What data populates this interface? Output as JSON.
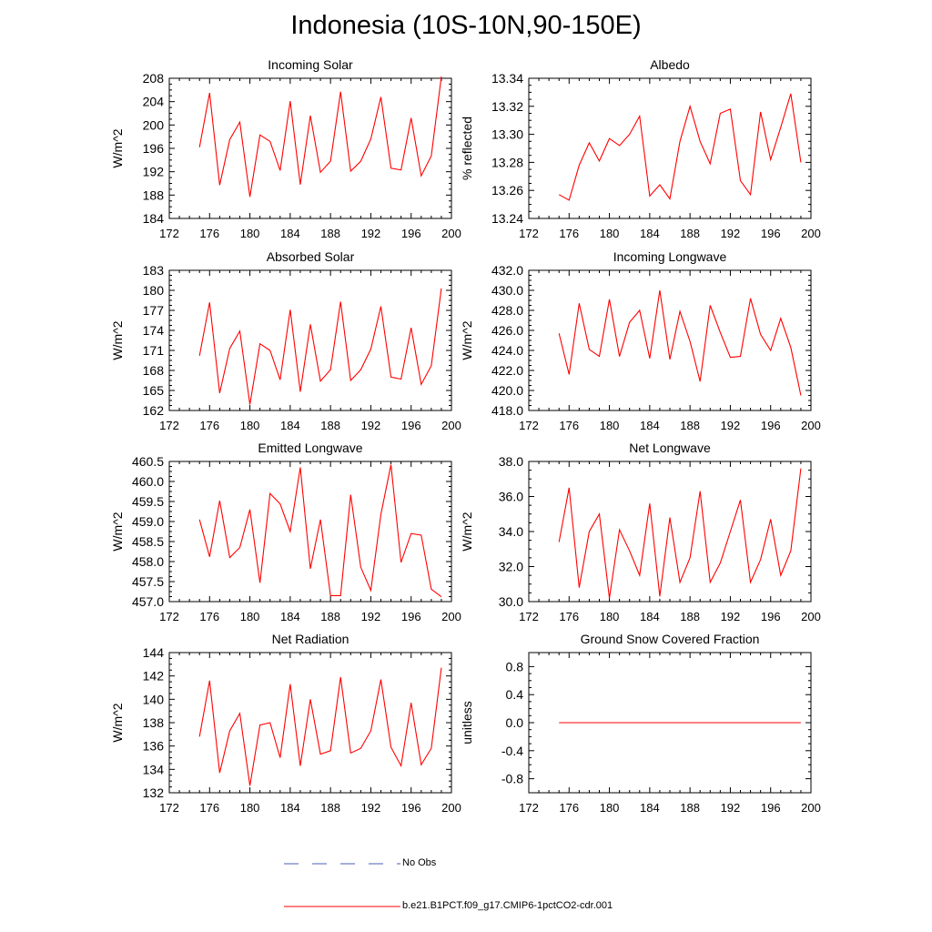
{
  "title": "Indonesia (10S-10N,90-150E)",
  "colors": {
    "model_line": "#ff0000",
    "obs_line": "#4a5fb5",
    "axis": "#000000"
  },
  "legend": {
    "obs_label": "No Obs",
    "model_label": "b.e21.B1PCT.f09_g17.CMIP6-1pctCO2-cdr.001"
  },
  "chart_data": [
    {
      "type": "line",
      "title": "Incoming Solar",
      "ylabel": "W/m^2",
      "xlim": [
        172,
        200
      ],
      "xticks": [
        "172",
        "176",
        "180",
        "184",
        "188",
        "192",
        "196",
        "200"
      ],
      "ylim": [
        184,
        208
      ],
      "yticks": [
        "184",
        "188",
        "192",
        "196",
        "200",
        "204",
        "208"
      ],
      "x": [
        175,
        176,
        177,
        178,
        179,
        180,
        181,
        182,
        183,
        184,
        185,
        186,
        187,
        188,
        189,
        190,
        191,
        192,
        193,
        194,
        195,
        196,
        197,
        198,
        199
      ],
      "series": [
        {
          "values": [
            196.2,
            205.5,
            189.7,
            197.5,
            200.5,
            187.7,
            198.3,
            197.2,
            192.2,
            204.1,
            189.8,
            201.6,
            191.9,
            193.8,
            205.7,
            192.1,
            193.8,
            197.6,
            204.8,
            192.6,
            192.3,
            201.2,
            191.3,
            194.7,
            208.3
          ]
        }
      ]
    },
    {
      "type": "line",
      "title": "Albedo",
      "ylabel": "% reflected",
      "xlim": [
        172,
        200
      ],
      "xticks": [
        "172",
        "176",
        "180",
        "184",
        "188",
        "192",
        "196",
        "200"
      ],
      "ylim": [
        13.24,
        13.34
      ],
      "yticks": [
        "13.24",
        "13.26",
        "13.28",
        "13.30",
        "13.32",
        "13.34"
      ],
      "x": [
        175,
        176,
        177,
        178,
        179,
        180,
        181,
        182,
        183,
        184,
        185,
        186,
        187,
        188,
        189,
        190,
        191,
        192,
        193,
        194,
        195,
        196,
        197,
        198,
        199
      ],
      "series": [
        {
          "values": [
            13.257,
            13.253,
            13.278,
            13.294,
            13.281,
            13.297,
            13.292,
            13.3,
            13.313,
            13.256,
            13.264,
            13.254,
            13.295,
            13.32,
            13.295,
            13.279,
            13.315,
            13.318,
            13.267,
            13.257,
            13.316,
            13.282,
            13.305,
            13.329,
            13.28
          ]
        }
      ]
    },
    {
      "type": "line",
      "title": "Absorbed Solar",
      "ylabel": "W/m^2",
      "xlim": [
        172,
        200
      ],
      "xticks": [
        "172",
        "176",
        "180",
        "184",
        "188",
        "192",
        "196",
        "200"
      ],
      "ylim": [
        162,
        183
      ],
      "yticks": [
        "162",
        "165",
        "168",
        "171",
        "174",
        "177",
        "180",
        "183"
      ],
      "x": [
        175,
        176,
        177,
        178,
        179,
        180,
        181,
        182,
        183,
        184,
        185,
        186,
        187,
        188,
        189,
        190,
        191,
        192,
        193,
        194,
        195,
        196,
        197,
        198,
        199
      ],
      "series": [
        {
          "values": [
            170.2,
            178.2,
            164.6,
            171.3,
            173.9,
            162.9,
            172.0,
            171.0,
            166.6,
            177.1,
            164.8,
            174.9,
            166.4,
            168.1,
            178.3,
            166.5,
            168.1,
            171.2,
            177.6,
            167.0,
            166.7,
            174.4,
            165.9,
            168.7,
            180.3
          ]
        }
      ]
    },
    {
      "type": "line",
      "title": "Incoming Longwave",
      "ylabel": "W/m^2",
      "xlim": [
        172,
        200
      ],
      "xticks": [
        "172",
        "176",
        "180",
        "184",
        "188",
        "192",
        "196",
        "200"
      ],
      "ylim": [
        418,
        432
      ],
      "yticks": [
        "418.0",
        "420.0",
        "422.0",
        "424.0",
        "426.0",
        "428.0",
        "430.0",
        "432.0"
      ],
      "x": [
        175,
        176,
        177,
        178,
        179,
        180,
        181,
        182,
        183,
        184,
        185,
        186,
        187,
        188,
        189,
        190,
        191,
        192,
        193,
        194,
        195,
        196,
        197,
        198,
        199
      ],
      "series": [
        {
          "values": [
            425.7,
            421.6,
            428.7,
            424.1,
            423.4,
            429.1,
            423.4,
            426.8,
            428.0,
            423.2,
            430.0,
            423.1,
            427.9,
            424.9,
            420.9,
            428.5,
            425.8,
            423.3,
            423.4,
            429.2,
            425.6,
            424.0,
            427.2,
            424.3,
            419.5
          ]
        }
      ]
    },
    {
      "type": "line",
      "title": "Emitted Longwave",
      "ylabel": "W/m^2",
      "xlim": [
        172,
        200
      ],
      "xticks": [
        "172",
        "176",
        "180",
        "184",
        "188",
        "192",
        "196",
        "200"
      ],
      "ylim": [
        457.0,
        460.5
      ],
      "yticks": [
        "457.0",
        "457.5",
        "458.0",
        "458.5",
        "459.0",
        "459.5",
        "460.0",
        "460.5"
      ],
      "x": [
        175,
        176,
        177,
        178,
        179,
        180,
        181,
        182,
        183,
        184,
        185,
        186,
        187,
        188,
        189,
        190,
        191,
        192,
        193,
        194,
        195,
        196,
        197,
        198,
        199
      ],
      "series": [
        {
          "values": [
            459.05,
            458.12,
            459.52,
            458.1,
            458.35,
            459.3,
            457.47,
            459.7,
            459.44,
            458.75,
            460.35,
            457.82,
            459.05,
            457.15,
            457.15,
            459.67,
            457.86,
            457.28,
            459.18,
            460.42,
            457.98,
            458.7,
            458.66,
            457.31,
            457.12
          ]
        }
      ]
    },
    {
      "type": "line",
      "title": "Net Longwave",
      "ylabel": "W/m^2",
      "xlim": [
        172,
        200
      ],
      "xticks": [
        "172",
        "176",
        "180",
        "184",
        "188",
        "192",
        "196",
        "200"
      ],
      "ylim": [
        30.0,
        38.0
      ],
      "yticks": [
        "30.0",
        "32.0",
        "34.0",
        "36.0",
        "38.0"
      ],
      "x": [
        175,
        176,
        177,
        178,
        179,
        180,
        181,
        182,
        183,
        184,
        185,
        186,
        187,
        188,
        189,
        190,
        191,
        192,
        193,
        194,
        195,
        196,
        197,
        198,
        199
      ],
      "series": [
        {
          "values": [
            33.4,
            36.5,
            30.8,
            34.0,
            35.0,
            30.2,
            34.1,
            32.9,
            31.5,
            35.6,
            30.3,
            34.8,
            31.1,
            32.5,
            36.3,
            31.1,
            32.2,
            34.0,
            35.8,
            31.1,
            32.4,
            34.7,
            31.5,
            32.9,
            37.6
          ]
        }
      ]
    },
    {
      "type": "line",
      "title": "Net Radiation",
      "ylabel": "W/m^2",
      "xlim": [
        172,
        200
      ],
      "xticks": [
        "172",
        "176",
        "180",
        "184",
        "188",
        "192",
        "196",
        "200"
      ],
      "ylim": [
        132,
        144
      ],
      "yticks": [
        "132",
        "134",
        "136",
        "138",
        "140",
        "142",
        "144"
      ],
      "x": [
        175,
        176,
        177,
        178,
        179,
        180,
        181,
        182,
        183,
        184,
        185,
        186,
        187,
        188,
        189,
        190,
        191,
        192,
        193,
        194,
        195,
        196,
        197,
        198,
        199
      ],
      "series": [
        {
          "values": [
            136.8,
            141.6,
            133.7,
            137.3,
            138.8,
            132.6,
            137.8,
            138.0,
            135.0,
            141.3,
            134.3,
            140.0,
            135.3,
            135.6,
            141.9,
            135.4,
            135.8,
            137.3,
            141.7,
            135.9,
            134.3,
            139.7,
            134.4,
            135.8,
            142.7
          ]
        }
      ]
    },
    {
      "type": "line",
      "title": "Ground Snow Covered Fraction",
      "ylabel": "unitless",
      "xlim": [
        172,
        200
      ],
      "xticks": [
        "172",
        "176",
        "180",
        "184",
        "188",
        "192",
        "196",
        "200"
      ],
      "ylim": [
        -1.0,
        1.0
      ],
      "yticks": [
        "-0.8",
        "-0.4",
        "0.0",
        "0.4",
        "0.8"
      ],
      "x": [
        175,
        176,
        177,
        178,
        179,
        180,
        181,
        182,
        183,
        184,
        185,
        186,
        187,
        188,
        189,
        190,
        191,
        192,
        193,
        194,
        195,
        196,
        197,
        198,
        199
      ],
      "series": [
        {
          "values": [
            0,
            0,
            0,
            0,
            0,
            0,
            0,
            0,
            0,
            0,
            0,
            0,
            0,
            0,
            0,
            0,
            0,
            0,
            0,
            0,
            0,
            0,
            0,
            0,
            0
          ]
        }
      ]
    }
  ]
}
